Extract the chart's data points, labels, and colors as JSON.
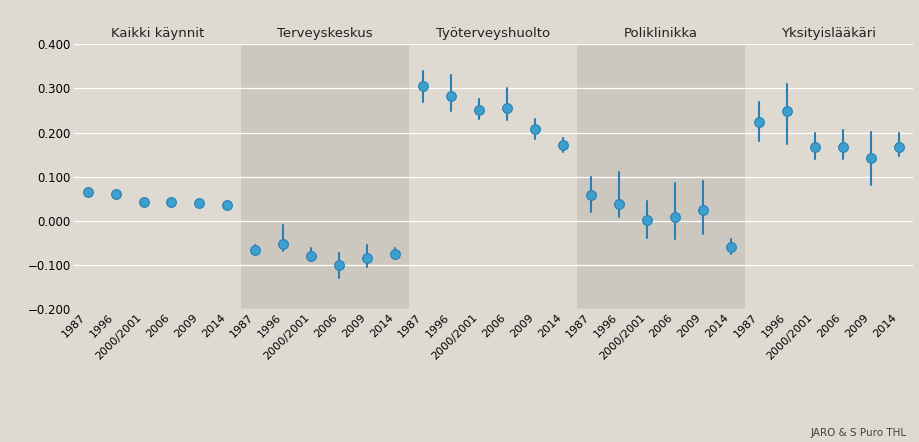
{
  "years": [
    "1987",
    "1996",
    "2000/2001",
    "2006",
    "2009",
    "2014"
  ],
  "sections": [
    {
      "title": "Kaikki käynnit",
      "values": [
        0.065,
        0.06,
        0.043,
        0.043,
        0.04,
        0.037
      ],
      "ci_low": [
        0.057,
        0.053,
        0.038,
        0.037,
        0.033,
        0.031
      ],
      "ci_high": [
        0.073,
        0.067,
        0.048,
        0.049,
        0.047,
        0.043
      ]
    },
    {
      "title": "Terveyskeskus",
      "values": [
        -0.065,
        -0.052,
        -0.08,
        -0.1,
        -0.083,
        -0.075
      ],
      "ci_low": [
        -0.076,
        -0.068,
        -0.09,
        -0.128,
        -0.105,
        -0.086
      ],
      "ci_high": [
        -0.054,
        -0.01,
        -0.06,
        -0.072,
        -0.055,
        -0.06
      ]
    },
    {
      "title": "Työterveyshuolto",
      "values": [
        0.305,
        0.282,
        0.252,
        0.255,
        0.208,
        0.172
      ],
      "ci_low": [
        0.27,
        0.248,
        0.23,
        0.228,
        0.185,
        0.155
      ],
      "ci_high": [
        0.34,
        0.33,
        0.275,
        0.3,
        0.23,
        0.188
      ]
    },
    {
      "title": "Poliklinikka",
      "values": [
        0.058,
        0.038,
        0.002,
        0.01,
        0.025,
        -0.058
      ],
      "ci_low": [
        0.02,
        0.01,
        -0.038,
        -0.04,
        -0.03,
        -0.075
      ],
      "ci_high": [
        0.1,
        0.11,
        0.045,
        0.085,
        0.09,
        -0.04
      ]
    },
    {
      "title": "Yksityislääkäri",
      "values": [
        0.225,
        0.248,
        0.168,
        0.168,
        0.142,
        0.168
      ],
      "ci_low": [
        0.18,
        0.175,
        0.14,
        0.14,
        0.082,
        0.148
      ],
      "ci_high": [
        0.27,
        0.31,
        0.2,
        0.205,
        0.202,
        0.2
      ]
    }
  ],
  "dot_color": "#3d9fcc",
  "line_color": "#2a7fb5",
  "bg_color_light": "#dedad2",
  "bg_color_dark": "#ccc8c0",
  "fig_bg": "#dedad2",
  "grid_color": "#ffffff",
  "ylim": [
    -0.2,
    0.4
  ],
  "yticks": [
    -0.2,
    -0.1,
    0.0,
    0.1,
    0.2,
    0.3,
    0.4
  ],
  "ytick_labels": [
    "−0.200",
    "−0.100",
    "0.000",
    "0.100",
    "0.200",
    "0.300",
    "0.400"
  ],
  "caption": "JARO & S Puro THL"
}
